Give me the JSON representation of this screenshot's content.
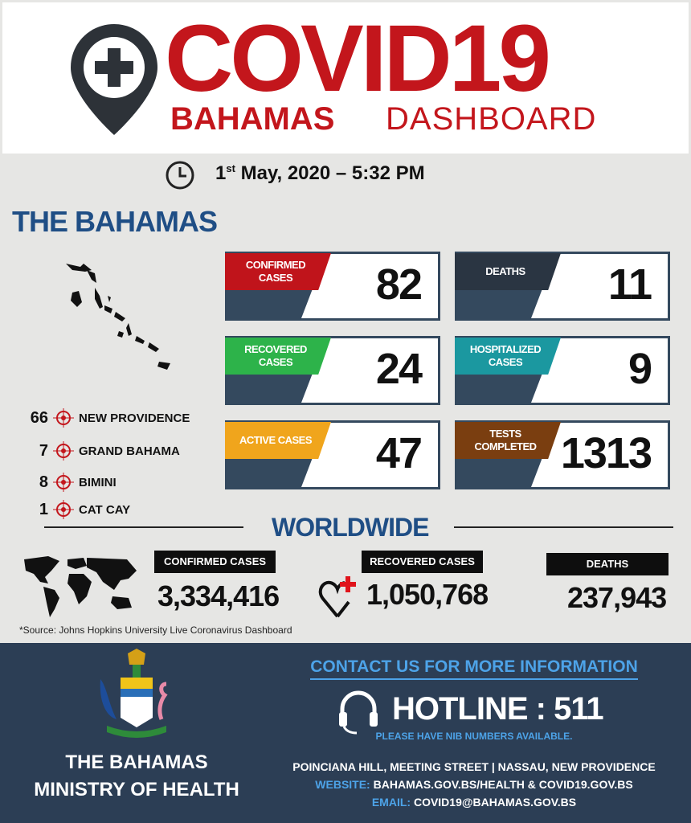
{
  "header": {
    "title": "COVID19",
    "subtitle_bold": "BAHAMAS",
    "subtitle_light": "DASHBOARD",
    "pin_icon": "map-pin-plus-icon",
    "accent": "#c3161c"
  },
  "timestamp": {
    "day": "1",
    "suffix": "st",
    "rest": " May, 2020 – 5:32 PM",
    "icon": "clock-icon"
  },
  "bahamas": {
    "heading": "THE BAHAMAS",
    "islands": [
      {
        "count": "66",
        "name": "NEW PROVIDENCE"
      },
      {
        "count": "7",
        "name": "GRAND BAHAMA"
      },
      {
        "count": "8",
        "name": "BIMINI"
      },
      {
        "count": "1",
        "name": "CAT CAY"
      }
    ],
    "stats": [
      {
        "label": "CONFIRMED CASES",
        "value": "82",
        "color": "#c0141b"
      },
      {
        "label": "DEATHS",
        "value": "11",
        "color": "#2a3542"
      },
      {
        "label": "RECOVERED CASES",
        "value": "24",
        "color": "#2db34a"
      },
      {
        "label": "HOSPITALIZED CASES",
        "value": "9",
        "color": "#1b98a0"
      },
      {
        "label": "ACTIVE CASES",
        "value": "47",
        "color": "#f0a51c"
      },
      {
        "label": "TESTS COMPLETED",
        "value": "1313",
        "color": "#7a3e10"
      }
    ]
  },
  "worldwide": {
    "heading": "WORLDWIDE",
    "confirmed_label": "CONFIRMED CASES",
    "confirmed": "3,334,416",
    "recovered_label": "RECOVERED CASES",
    "recovered": "1,050,768",
    "deaths_label": "DEATHS",
    "deaths": "237,943",
    "source": "*Source: Johns Hopkins University Live Coronavirus Dashboard"
  },
  "footer": {
    "ministry_line1": "THE BAHAMAS",
    "ministry_line2": "MINISTRY OF HEALTH",
    "contact_heading": "CONTACT US FOR MORE INFORMATION",
    "hotline": "HOTLINE : 511",
    "hotline_note": "PLEASE HAVE NIB NUMBERS AVAILABLE.",
    "address": "POINCIANA HILL, MEETING STREET  |  NASSAU, NEW PROVIDENCE",
    "website_label": "WEBSITE:",
    "website": "BAHAMAS.GOV.BS/HEALTH  &  COVID19.GOV.BS",
    "email_label": "EMAIL:",
    "email": "COVID19@BAHAMAS.GOV.BS",
    "link_color": "#4da3e8"
  }
}
